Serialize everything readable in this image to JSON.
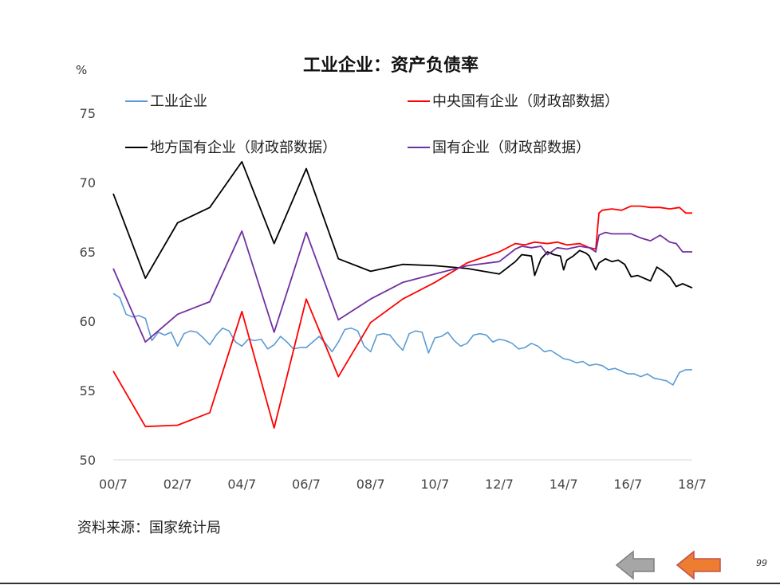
{
  "page": {
    "source": "资料来源：国家统计局",
    "page_number": "99",
    "nav_back_label": "",
    "nav_next_label": ""
  },
  "colors": {
    "工业企业": "#5B9BD5",
    "中央国有企业（财政部数据）": "#FF0000",
    "地方国有企业（财政部数据）": "#000000",
    "国有企业（财政部数据）": "#7030A0",
    "nav_back": "#A6A6A6",
    "nav_next": "#ED7D31"
  },
  "chart_data": {
    "type": "line",
    "title": "工业企业：资产负债率",
    "ylabel": "%",
    "xlabel": "",
    "ylim": [
      50,
      75
    ],
    "yticks": [
      50,
      55,
      60,
      65,
      70,
      75
    ],
    "xlim": [
      2000.5,
      2018.5
    ],
    "xticks": [
      {
        "x": 2000.5,
        "label": "00/7"
      },
      {
        "x": 2002.5,
        "label": "02/7"
      },
      {
        "x": 2004.5,
        "label": "04/7"
      },
      {
        "x": 2006.5,
        "label": "06/7"
      },
      {
        "x": 2008.5,
        "label": "08/7"
      },
      {
        "x": 2010.5,
        "label": "10/7"
      },
      {
        "x": 2012.5,
        "label": "12/7"
      },
      {
        "x": 2014.5,
        "label": "14/7"
      },
      {
        "x": 2016.5,
        "label": "16/7"
      },
      {
        "x": 2018.5,
        "label": "18/7"
      }
    ],
    "grid": false,
    "legend_position": "top",
    "series": [
      {
        "name": "工业企业",
        "x": [
          2000.5,
          2000.7,
          2000.9,
          2001.1,
          2001.3,
          2001.5,
          2001.7,
          2001.9,
          2002.1,
          2002.3,
          2002.5,
          2002.7,
          2002.9,
          2003.1,
          2003.3,
          2003.5,
          2003.7,
          2003.9,
          2004.1,
          2004.3,
          2004.5,
          2004.7,
          2004.9,
          2005.1,
          2005.3,
          2005.5,
          2005.7,
          2005.9,
          2006.1,
          2006.3,
          2006.5,
          2006.7,
          2006.9,
          2007.1,
          2007.3,
          2007.5,
          2007.7,
          2007.9,
          2008.1,
          2008.3,
          2008.5,
          2008.7,
          2008.9,
          2009.1,
          2009.3,
          2009.5,
          2009.7,
          2009.9,
          2010.1,
          2010.3,
          2010.5,
          2010.7,
          2010.9,
          2011.1,
          2011.3,
          2011.5,
          2011.7,
          2011.9,
          2012.1,
          2012.3,
          2012.5,
          2012.7,
          2012.9,
          2013.1,
          2013.3,
          2013.5,
          2013.7,
          2013.9,
          2014.1,
          2014.3,
          2014.5,
          2014.7,
          2014.9,
          2015.1,
          2015.3,
          2015.5,
          2015.7,
          2015.9,
          2016.1,
          2016.3,
          2016.5,
          2016.7,
          2016.9,
          2017.1,
          2017.3,
          2017.5,
          2017.7,
          2017.9,
          2018.1,
          2018.3,
          2018.5
        ],
        "values": [
          62.0,
          61.7,
          60.5,
          60.3,
          60.4,
          60.2,
          58.6,
          59.2,
          59.0,
          59.2,
          58.2,
          59.1,
          59.3,
          59.2,
          58.8,
          58.3,
          59.0,
          59.5,
          59.3,
          58.5,
          58.2,
          58.7,
          58.6,
          58.7,
          58.0,
          58.3,
          58.9,
          58.5,
          58.0,
          58.1,
          58.1,
          58.5,
          58.9,
          58.4,
          57.8,
          58.5,
          59.4,
          59.5,
          59.3,
          58.2,
          57.8,
          59.0,
          59.1,
          59.0,
          58.4,
          57.9,
          59.1,
          59.3,
          59.2,
          57.7,
          58.8,
          58.9,
          59.2,
          58.6,
          58.2,
          58.4,
          59.0,
          59.1,
          59.0,
          58.5,
          58.7,
          58.6,
          58.4,
          58.0,
          58.1,
          58.4,
          58.2,
          57.8,
          57.9,
          57.6,
          57.3,
          57.2,
          57.0,
          57.1,
          56.8,
          56.9,
          56.8,
          56.5,
          56.6,
          56.4,
          56.2,
          56.2,
          56.0,
          56.2,
          55.9,
          55.8,
          55.7,
          55.4,
          56.3,
          56.5,
          56.5
        ]
      },
      {
        "name": "中央国有企业（财政部数据）",
        "x": [
          2000.5,
          2001.5,
          2002.5,
          2003.5,
          2004.5,
          2005.5,
          2006.5,
          2007.5,
          2008.5,
          2009.5,
          2010.5,
          2011.5,
          2012.5,
          2013.0,
          2013.3,
          2013.6,
          2014.0,
          2014.3,
          2014.6,
          2015.0,
          2015.3,
          2015.5,
          2015.6,
          2015.7,
          2016.0,
          2016.3,
          2016.6,
          2016.9,
          2017.2,
          2017.5,
          2017.8,
          2018.1,
          2018.3,
          2018.5
        ],
        "values": [
          56.4,
          52.4,
          52.5,
          53.4,
          60.7,
          52.3,
          61.6,
          56.0,
          59.9,
          61.6,
          62.8,
          64.2,
          65.0,
          65.6,
          65.5,
          65.7,
          65.6,
          65.7,
          65.5,
          65.6,
          65.3,
          65.2,
          67.8,
          68.0,
          68.1,
          68.0,
          68.3,
          68.3,
          68.2,
          68.2,
          68.1,
          68.2,
          67.8,
          67.8
        ]
      },
      {
        "name": "地方国有企业（财政部数据）",
        "x": [
          2000.5,
          2001.5,
          2002.5,
          2003.5,
          2004.5,
          2005.5,
          2006.5,
          2007.5,
          2008.5,
          2009.5,
          2010.5,
          2011.5,
          2012.5,
          2013.0,
          2013.2,
          2013.5,
          2013.6,
          2013.8,
          2014.0,
          2014.2,
          2014.4,
          2014.5,
          2014.6,
          2014.8,
          2015.0,
          2015.2,
          2015.3,
          2015.5,
          2015.6,
          2015.8,
          2016.0,
          2016.2,
          2016.4,
          2016.6,
          2016.8,
          2017.0,
          2017.2,
          2017.4,
          2017.6,
          2017.8,
          2018.0,
          2018.2,
          2018.5
        ],
        "values": [
          69.2,
          63.1,
          67.1,
          68.2,
          71.5,
          65.6,
          71.0,
          64.5,
          63.6,
          64.1,
          64.0,
          63.8,
          63.4,
          64.3,
          64.8,
          64.7,
          63.3,
          64.5,
          65.0,
          64.8,
          64.7,
          63.7,
          64.4,
          64.7,
          65.1,
          64.9,
          64.7,
          63.7,
          64.2,
          64.5,
          64.3,
          64.4,
          64.1,
          63.2,
          63.3,
          63.1,
          62.9,
          63.9,
          63.6,
          63.2,
          62.5,
          62.7,
          62.4
        ]
      },
      {
        "name": "国有企业（财政部数据）",
        "x": [
          2000.5,
          2001.5,
          2002.5,
          2003.5,
          2004.5,
          2005.5,
          2006.5,
          2007.5,
          2008.5,
          2009.5,
          2010.5,
          2011.5,
          2012.5,
          2013.0,
          2013.2,
          2013.5,
          2013.8,
          2014.0,
          2014.3,
          2014.6,
          2015.0,
          2015.3,
          2015.5,
          2015.6,
          2015.8,
          2016.0,
          2016.3,
          2016.6,
          2016.9,
          2017.2,
          2017.5,
          2017.8,
          2018.0,
          2018.2,
          2018.5
        ],
        "values": [
          63.8,
          58.5,
          60.5,
          61.4,
          66.5,
          59.2,
          66.4,
          60.1,
          61.6,
          62.8,
          63.4,
          64.0,
          64.3,
          65.2,
          65.4,
          65.3,
          65.4,
          64.8,
          65.3,
          65.2,
          65.4,
          65.3,
          65.0,
          66.2,
          66.4,
          66.3,
          66.3,
          66.3,
          66.0,
          65.8,
          66.2,
          65.7,
          65.6,
          65.0,
          65.0
        ]
      }
    ]
  }
}
